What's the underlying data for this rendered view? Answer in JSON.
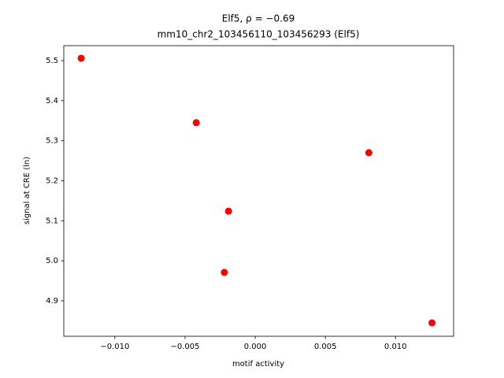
{
  "chart_data": {
    "type": "scatter",
    "title": "Elf5, ρ = −0.69",
    "subtitle": "mm10_chr2_103456110_103456293 (Elf5)",
    "x_label": "motif activity",
    "y_label": "signal at CRE (ln)",
    "x": [
      -0.0124,
      -0.0042,
      0.0081,
      -0.0019,
      -0.0022,
      0.0126
    ],
    "y": [
      5.506,
      5.345,
      5.27,
      5.124,
      4.971,
      4.845
    ],
    "color": "#ff0000",
    "xlim": [
      -0.01364,
      0.01414
    ],
    "ylim": [
      4.8115,
      5.5374
    ],
    "xticks": [
      {
        "value": -0.01,
        "label": "−0.010"
      },
      {
        "value": -0.005,
        "label": "−0.005"
      },
      {
        "value": 0,
        "label": "0.000"
      },
      0.005,
      {
        "value": 0.01,
        "label": "0.010"
      }
    ],
    "yticks": [
      4.9,
      {
        "value": 5,
        "label": "5.0"
      },
      5.1,
      5.2,
      5.3,
      5.4,
      5.5
    ]
  }
}
